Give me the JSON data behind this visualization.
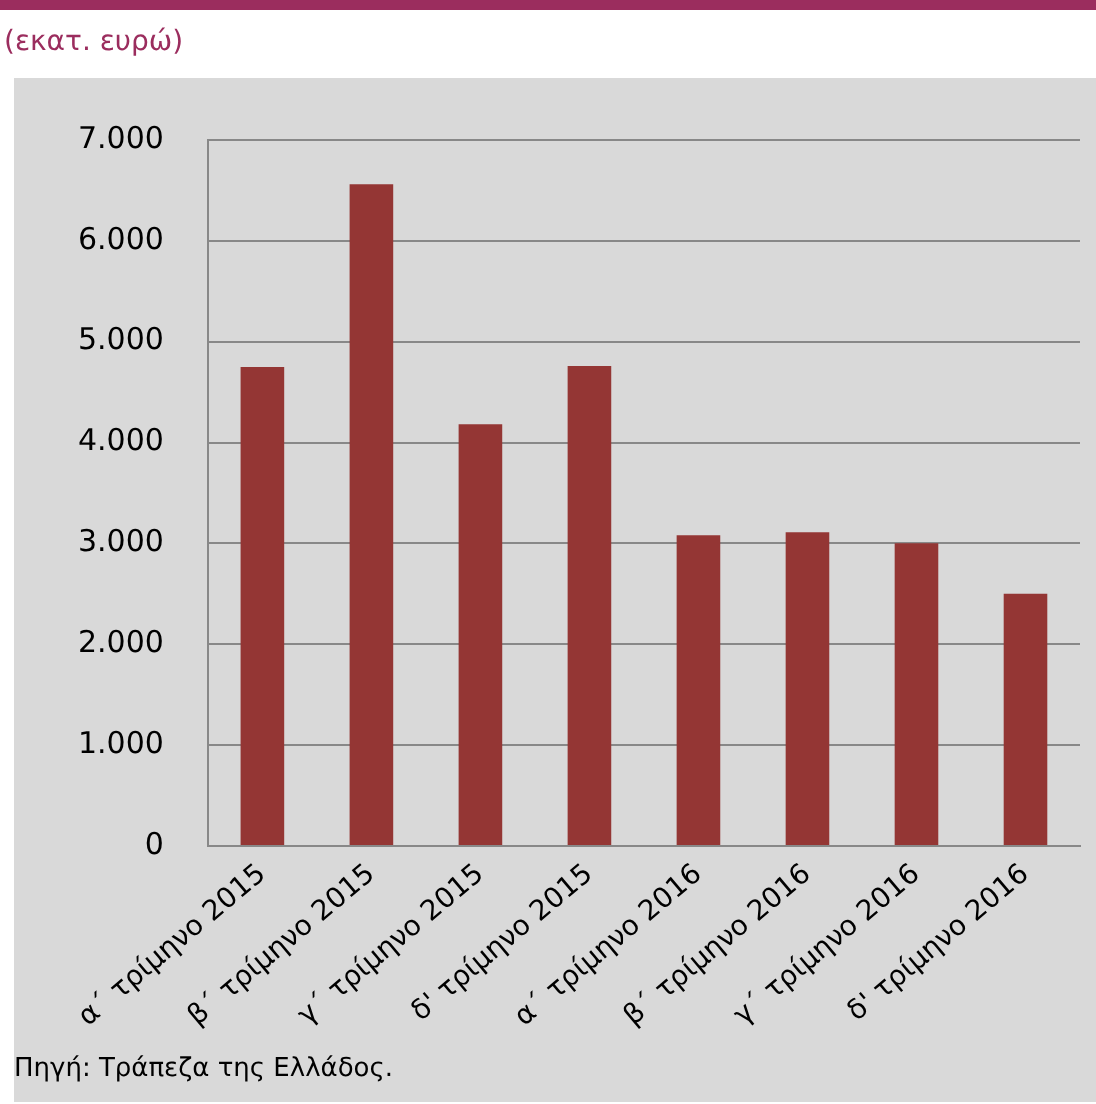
{
  "chart_data": {
    "type": "bar",
    "subtitle": "(εκατ. ευρώ)",
    "categories": [
      "α΄ τρίμηνο 2015",
      "β΄ τρίμηνο 2015",
      "γ΄ τρίμηνο 2015",
      "δ' τρίμηνο 2015",
      "α΄ τρίμηνο 2016",
      "β΄ τρίμηνο 2016",
      "γ΄ τρίμηνο 2016",
      "δ' τρίμηνο 2016"
    ],
    "values": [
      4750,
      6560,
      4180,
      4760,
      3080,
      3110,
      3000,
      2500
    ],
    "color": "#943634",
    "ylim": [
      0,
      7000
    ],
    "yticks": [
      {
        "value": 0,
        "label": "0"
      },
      {
        "value": 1000,
        "label": "1.000"
      },
      {
        "value": 2000,
        "label": "2.000"
      },
      {
        "value": 3000,
        "label": "3.000"
      },
      {
        "value": 4000,
        "label": "4.000"
      },
      {
        "value": 5000,
        "label": "5.000"
      },
      {
        "value": 6000,
        "label": "6.000"
      },
      {
        "value": 7000,
        "label": "7.000"
      }
    ],
    "grid": "y",
    "annotations": [
      "Πηγή: Τράπεζα της Ελλάδος."
    ]
  }
}
